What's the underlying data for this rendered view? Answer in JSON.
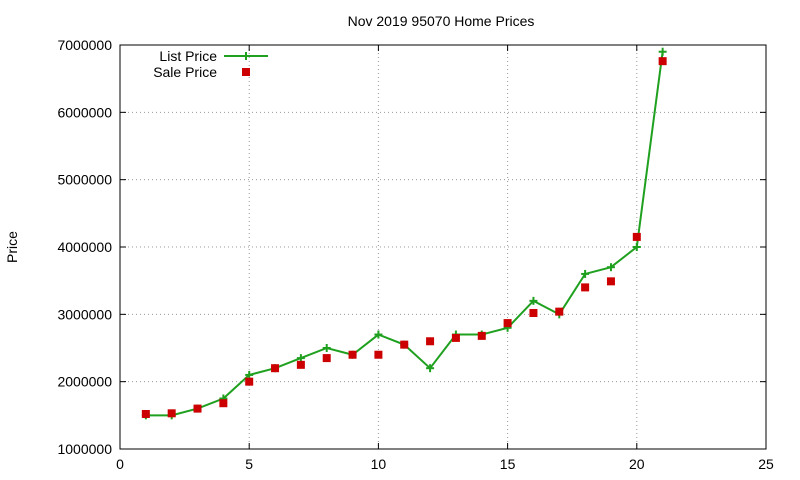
{
  "chart_data": {
    "type": "line",
    "title": "Nov 2019 95070 Home Prices",
    "xlabel": "",
    "ylabel": "Price",
    "xlim": [
      0,
      25
    ],
    "ylim": [
      1000000,
      7000000
    ],
    "xticks": [
      0,
      5,
      10,
      15,
      20,
      25
    ],
    "yticks": [
      1000000,
      2000000,
      3000000,
      4000000,
      5000000,
      6000000,
      7000000
    ],
    "grid": true,
    "legend_position": "top-left",
    "series": [
      {
        "name": "List Price",
        "style": "line-plus",
        "color": "#1fa01f",
        "x": [
          1,
          2,
          3,
          4,
          5,
          6,
          7,
          8,
          9,
          10,
          11,
          12,
          13,
          14,
          15,
          16,
          17,
          18,
          19,
          20,
          21
        ],
        "y": [
          1500000,
          1500000,
          1600000,
          1750000,
          2100000,
          2200000,
          2350000,
          2500000,
          2400000,
          2700000,
          2550000,
          2200000,
          2700000,
          2700000,
          2800000,
          3200000,
          3000000,
          3600000,
          3700000,
          4000000,
          6900000
        ]
      },
      {
        "name": "Sale Price",
        "style": "square",
        "color": "#cc0000",
        "x": [
          1,
          2,
          3,
          4,
          5,
          6,
          7,
          8,
          9,
          10,
          11,
          12,
          13,
          14,
          15,
          16,
          17,
          18,
          19,
          20,
          21
        ],
        "y": [
          1520000,
          1530000,
          1600000,
          1680000,
          2000000,
          2200000,
          2250000,
          2350000,
          2400000,
          2400000,
          2550000,
          2600000,
          2650000,
          2680000,
          2870000,
          3020000,
          3040000,
          3400000,
          3490000,
          4150000,
          6760000
        ]
      }
    ]
  }
}
